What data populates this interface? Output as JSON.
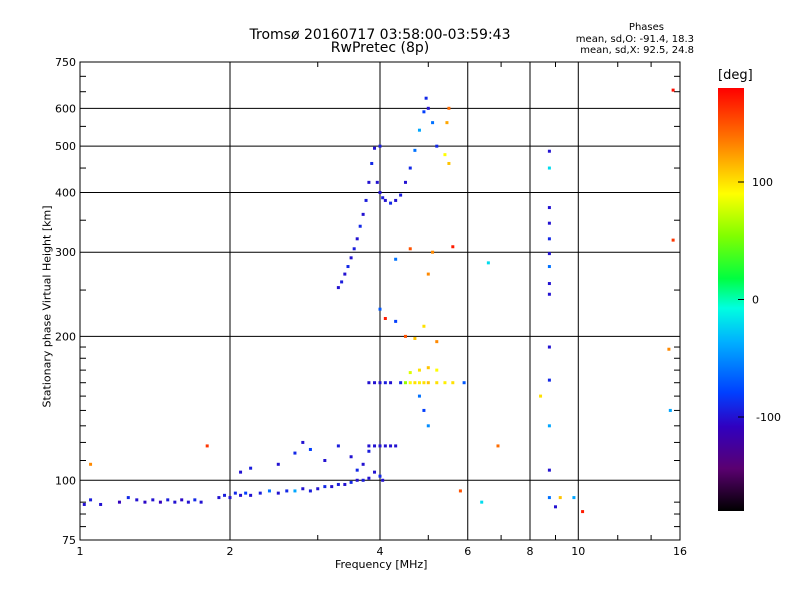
{
  "title": "Tromsø 20160717 03:58:00-03:59:43",
  "subtitle": "RwPretec (8p)",
  "phases": {
    "header": "Phases",
    "o_stats": "mean, sd,O: -91.4, 18.3",
    "x_stats": "mean, sd,X:  92.5, 24.8"
  },
  "colorbar": {
    "unit": "[deg]",
    "min": -180,
    "max": 180,
    "ticks": [
      "100",
      "0",
      "-100"
    ],
    "tick_values": [
      100,
      0,
      -100
    ]
  },
  "chart_data": {
    "type": "scatter",
    "title": "Tromsø 20160717 03:58:00-03:59:43",
    "subtitle": "RwPretec (8p)",
    "xlabel": "Frequency [MHz]",
    "ylabel": "Stationary phase Virtual Height [km]",
    "x_scale": "log",
    "y_scale": "log",
    "xlim": [
      1,
      16
    ],
    "ylim": [
      75,
      750
    ],
    "x_ticks": [
      1,
      2,
      4,
      6,
      8,
      10,
      16
    ],
    "x_tick_labels": [
      "1",
      "2",
      "4",
      "6",
      "8",
      "10",
      "16"
    ],
    "y_ticks": [
      75,
      100,
      200,
      300,
      400,
      500,
      600,
      750
    ],
    "y_tick_labels": [
      "75",
      "100",
      "200",
      "300",
      "400",
      "500",
      "600",
      "750"
    ],
    "grid": true,
    "color_by": "phase [deg]",
    "points": [
      {
        "f": 1.02,
        "h": 89,
        "p": -100
      },
      {
        "f": 1.05,
        "h": 91,
        "p": -95
      },
      {
        "f": 1.1,
        "h": 89,
        "p": -100
      },
      {
        "f": 1.05,
        "h": 108,
        "p": 130
      },
      {
        "f": 1.2,
        "h": 90,
        "p": -110
      },
      {
        "f": 1.25,
        "h": 92,
        "p": -90
      },
      {
        "f": 1.3,
        "h": 91,
        "p": -100
      },
      {
        "f": 1.35,
        "h": 90,
        "p": -105
      },
      {
        "f": 1.4,
        "h": 91,
        "p": -100
      },
      {
        "f": 1.45,
        "h": 90,
        "p": -110
      },
      {
        "f": 1.5,
        "h": 91,
        "p": -95
      },
      {
        "f": 1.55,
        "h": 90,
        "p": -100
      },
      {
        "f": 1.6,
        "h": 91,
        "p": -105
      },
      {
        "f": 1.65,
        "h": 90,
        "p": -100
      },
      {
        "f": 1.7,
        "h": 91,
        "p": -90
      },
      {
        "f": 1.75,
        "h": 90,
        "p": -100
      },
      {
        "f": 1.8,
        "h": 118,
        "p": 160
      },
      {
        "f": 1.9,
        "h": 92,
        "p": -100
      },
      {
        "f": 1.95,
        "h": 93,
        "p": -95
      },
      {
        "f": 2.0,
        "h": 92,
        "p": -100
      },
      {
        "f": 2.05,
        "h": 94,
        "p": -90
      },
      {
        "f": 2.1,
        "h": 93,
        "p": -100
      },
      {
        "f": 2.15,
        "h": 94,
        "p": -80
      },
      {
        "f": 2.2,
        "h": 93,
        "p": -100
      },
      {
        "f": 2.3,
        "h": 94,
        "p": -95
      },
      {
        "f": 2.4,
        "h": 95,
        "p": -60
      },
      {
        "f": 2.5,
        "h": 94,
        "p": -100
      },
      {
        "f": 2.6,
        "h": 95,
        "p": -90
      },
      {
        "f": 2.7,
        "h": 95,
        "p": -40
      },
      {
        "f": 2.8,
        "h": 96,
        "p": -100
      },
      {
        "f": 2.9,
        "h": 95,
        "p": -95
      },
      {
        "f": 3.0,
        "h": 96,
        "p": -100
      },
      {
        "f": 3.1,
        "h": 97,
        "p": -90
      },
      {
        "f": 3.2,
        "h": 97,
        "p": -100
      },
      {
        "f": 3.3,
        "h": 98,
        "p": -95
      },
      {
        "f": 3.4,
        "h": 98,
        "p": -100
      },
      {
        "f": 3.5,
        "h": 99,
        "p": -90
      },
      {
        "f": 3.6,
        "h": 100,
        "p": -100
      },
      {
        "f": 3.7,
        "h": 100,
        "p": -95
      },
      {
        "f": 3.8,
        "h": 101,
        "p": -100
      },
      {
        "f": 2.1,
        "h": 104,
        "p": -100
      },
      {
        "f": 2.2,
        "h": 106,
        "p": -95
      },
      {
        "f": 2.5,
        "h": 108,
        "p": -100
      },
      {
        "f": 2.7,
        "h": 114,
        "p": -90
      },
      {
        "f": 2.8,
        "h": 120,
        "p": -100
      },
      {
        "f": 2.9,
        "h": 116,
        "p": -80
      },
      {
        "f": 3.1,
        "h": 110,
        "p": -100
      },
      {
        "f": 3.3,
        "h": 118,
        "p": -95
      },
      {
        "f": 3.5,
        "h": 112,
        "p": -100
      },
      {
        "f": 3.6,
        "h": 105,
        "p": -90
      },
      {
        "f": 3.7,
        "h": 108,
        "p": -100
      },
      {
        "f": 3.8,
        "h": 115,
        "p": -95
      },
      {
        "f": 3.9,
        "h": 104,
        "p": -100
      },
      {
        "f": 4.0,
        "h": 102,
        "p": -90
      },
      {
        "f": 4.05,
        "h": 100,
        "p": -100
      },
      {
        "f": 3.8,
        "h": 118,
        "p": -100
      },
      {
        "f": 3.9,
        "h": 118,
        "p": -100
      },
      {
        "f": 4.0,
        "h": 118,
        "p": -100
      },
      {
        "f": 4.1,
        "h": 118,
        "p": -100
      },
      {
        "f": 4.2,
        "h": 118,
        "p": -100
      },
      {
        "f": 4.3,
        "h": 118,
        "p": -100
      },
      {
        "f": 3.3,
        "h": 253,
        "p": -100
      },
      {
        "f": 3.35,
        "h": 260,
        "p": -95
      },
      {
        "f": 3.4,
        "h": 270,
        "p": -100
      },
      {
        "f": 3.45,
        "h": 280,
        "p": -90
      },
      {
        "f": 3.5,
        "h": 292,
        "p": -100
      },
      {
        "f": 3.55,
        "h": 305,
        "p": -95
      },
      {
        "f": 3.6,
        "h": 320,
        "p": -100
      },
      {
        "f": 3.65,
        "h": 340,
        "p": -90
      },
      {
        "f": 3.7,
        "h": 360,
        "p": -100
      },
      {
        "f": 3.75,
        "h": 385,
        "p": -95
      },
      {
        "f": 3.8,
        "h": 420,
        "p": -100
      },
      {
        "f": 3.85,
        "h": 460,
        "p": -90
      },
      {
        "f": 3.9,
        "h": 495,
        "p": -100
      },
      {
        "f": 4.0,
        "h": 500,
        "p": -95
      },
      {
        "f": 3.95,
        "h": 420,
        "p": -100
      },
      {
        "f": 4.0,
        "h": 400,
        "p": -100
      },
      {
        "f": 4.05,
        "h": 390,
        "p": -95
      },
      {
        "f": 4.1,
        "h": 385,
        "p": -100
      },
      {
        "f": 4.2,
        "h": 380,
        "p": -90
      },
      {
        "f": 4.3,
        "h": 385,
        "p": -100
      },
      {
        "f": 4.4,
        "h": 395,
        "p": -95
      },
      {
        "f": 4.5,
        "h": 420,
        "p": -100
      },
      {
        "f": 4.6,
        "h": 450,
        "p": -90
      },
      {
        "f": 4.7,
        "h": 490,
        "p": -60
      },
      {
        "f": 4.8,
        "h": 540,
        "p": -40
      },
      {
        "f": 4.9,
        "h": 590,
        "p": -80
      },
      {
        "f": 4.95,
        "h": 630,
        "p": -90
      },
      {
        "f": 5.0,
        "h": 600,
        "p": -100
      },
      {
        "f": 5.1,
        "h": 560,
        "p": -60
      },
      {
        "f": 5.2,
        "h": 500,
        "p": -90
      },
      {
        "f": 5.4,
        "h": 480,
        "p": 90
      },
      {
        "f": 5.5,
        "h": 460,
        "p": 110
      },
      {
        "f": 5.45,
        "h": 560,
        "p": 120
      },
      {
        "f": 5.5,
        "h": 600,
        "p": 140
      },
      {
        "f": 4.0,
        "h": 228,
        "p": -70
      },
      {
        "f": 4.1,
        "h": 218,
        "p": 170
      },
      {
        "f": 4.3,
        "h": 215,
        "p": -80
      },
      {
        "f": 4.5,
        "h": 200,
        "p": 150
      },
      {
        "f": 4.7,
        "h": 198,
        "p": 110
      },
      {
        "f": 4.9,
        "h": 210,
        "p": 100
      },
      {
        "f": 5.2,
        "h": 195,
        "p": 130
      },
      {
        "f": 3.8,
        "h": 160,
        "p": -100
      },
      {
        "f": 3.9,
        "h": 160,
        "p": -100
      },
      {
        "f": 4.0,
        "h": 160,
        "p": -100
      },
      {
        "f": 4.1,
        "h": 160,
        "p": -95
      },
      {
        "f": 4.2,
        "h": 160,
        "p": -100
      },
      {
        "f": 4.4,
        "h": 160,
        "p": -90
      },
      {
        "f": 4.5,
        "h": 160,
        "p": 60
      },
      {
        "f": 4.6,
        "h": 160,
        "p": 90
      },
      {
        "f": 4.7,
        "h": 160,
        "p": 100
      },
      {
        "f": 4.8,
        "h": 160,
        "p": 95
      },
      {
        "f": 4.9,
        "h": 160,
        "p": 100
      },
      {
        "f": 5.0,
        "h": 160,
        "p": 110
      },
      {
        "f": 5.2,
        "h": 160,
        "p": 100
      },
      {
        "f": 5.4,
        "h": 160,
        "p": 95
      },
      {
        "f": 5.6,
        "h": 160,
        "p": 100
      },
      {
        "f": 5.9,
        "h": 160,
        "p": -70
      },
      {
        "f": 4.6,
        "h": 168,
        "p": 80
      },
      {
        "f": 4.8,
        "h": 170,
        "p": 100
      },
      {
        "f": 5.0,
        "h": 172,
        "p": 110
      },
      {
        "f": 5.2,
        "h": 170,
        "p": 90
      },
      {
        "f": 4.8,
        "h": 150,
        "p": -60
      },
      {
        "f": 4.9,
        "h": 140,
        "p": -80
      },
      {
        "f": 5.0,
        "h": 130,
        "p": -50
      },
      {
        "f": 4.6,
        "h": 305,
        "p": 150
      },
      {
        "f": 5.1,
        "h": 300,
        "p": 130
      },
      {
        "f": 5.6,
        "h": 308,
        "p": 170
      },
      {
        "f": 6.6,
        "h": 285,
        "p": -20
      },
      {
        "f": 4.3,
        "h": 290,
        "p": -60
      },
      {
        "f": 5.0,
        "h": 270,
        "p": 130
      },
      {
        "f": 8.75,
        "h": 488,
        "p": -100
      },
      {
        "f": 8.75,
        "h": 450,
        "p": -20
      },
      {
        "f": 8.75,
        "h": 372,
        "p": -100
      },
      {
        "f": 8.75,
        "h": 345,
        "p": -100
      },
      {
        "f": 8.75,
        "h": 320,
        "p": -90
      },
      {
        "f": 8.75,
        "h": 298,
        "p": -100
      },
      {
        "f": 8.75,
        "h": 280,
        "p": -60
      },
      {
        "f": 8.75,
        "h": 258,
        "p": -100
      },
      {
        "f": 8.75,
        "h": 245,
        "p": -100
      },
      {
        "f": 8.75,
        "h": 190,
        "p": -100
      },
      {
        "f": 8.75,
        "h": 162,
        "p": -90
      },
      {
        "f": 8.75,
        "h": 130,
        "p": -40
      },
      {
        "f": 8.75,
        "h": 105,
        "p": -100
      },
      {
        "f": 8.75,
        "h": 92,
        "p": -60
      },
      {
        "f": 8.4,
        "h": 150,
        "p": 100
      },
      {
        "f": 9.2,
        "h": 92,
        "p": 110
      },
      {
        "f": 9.0,
        "h": 88,
        "p": -100
      },
      {
        "f": 9.8,
        "h": 92,
        "p": -40
      },
      {
        "f": 10.2,
        "h": 86,
        "p": 170
      },
      {
        "f": 15.5,
        "h": 655,
        "p": 175
      },
      {
        "f": 15.5,
        "h": 318,
        "p": 160
      },
      {
        "f": 15.2,
        "h": 188,
        "p": 130
      },
      {
        "f": 15.3,
        "h": 140,
        "p": -40
      },
      {
        "f": 6.9,
        "h": 118,
        "p": 140
      },
      {
        "f": 5.8,
        "h": 95,
        "p": 150
      },
      {
        "f": 6.4,
        "h": 90,
        "p": -20
      }
    ]
  }
}
